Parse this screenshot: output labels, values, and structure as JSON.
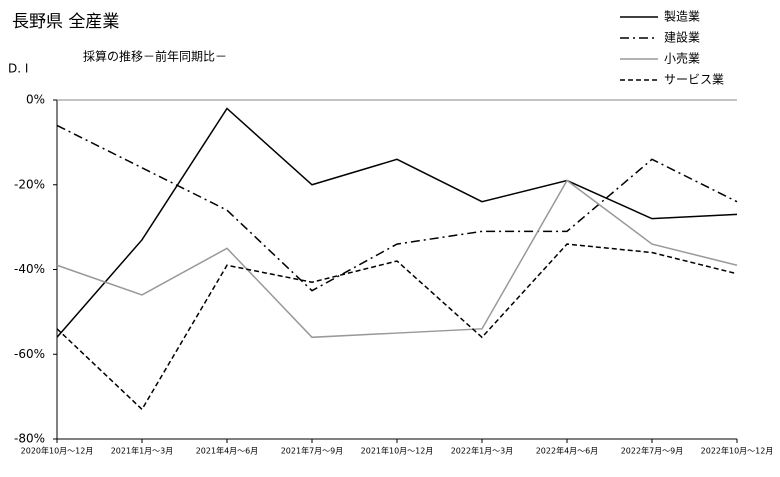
{
  "chart_data": {
    "type": "line",
    "title": "長野県 全産業",
    "subtitle": "採算の推移－前年同期比－",
    "y_label": "D. I",
    "categories": [
      "2020年10月～12月",
      "2021年1月～3月",
      "2021年4月～6月",
      "2021年7月～9月",
      "2021年10月～12月",
      "2022年1月～3月",
      "2022年4月～6月",
      "2022年7月～9月",
      "2022年10月～12月"
    ],
    "series": [
      {
        "name": "製造業",
        "color": "#000000",
        "line_style": "solid",
        "values": [
          -56,
          -33,
          -2,
          -20,
          -14,
          -24,
          -19,
          -28,
          -27
        ]
      },
      {
        "name": "建設業",
        "color": "#000000",
        "line_style": "dashdot",
        "values": [
          -6,
          -16,
          -26,
          -45,
          -34,
          -31,
          -31,
          -14,
          -24
        ]
      },
      {
        "name": "小売業",
        "color": "#999999",
        "line_style": "solid",
        "values": [
          -39,
          -46,
          -35,
          -56,
          -55,
          -54,
          -19,
          -34,
          -39
        ]
      },
      {
        "name": "サービス業",
        "color": "#000000",
        "line_style": "dashed",
        "values": [
          -54,
          -73,
          -39,
          -43,
          -38,
          -56,
          -34,
          -36,
          -41
        ]
      }
    ],
    "ylim": [
      -80,
      0
    ],
    "yticks": [
      {
        "value": 0,
        "label": "0%"
      },
      {
        "value": -20,
        "label": "-20%"
      },
      {
        "value": -40,
        "label": "-40%"
      },
      {
        "value": -60,
        "label": "-60%"
      },
      {
        "value": -80,
        "label": "-80%"
      }
    ],
    "grid": false,
    "legend": "upper right"
  }
}
